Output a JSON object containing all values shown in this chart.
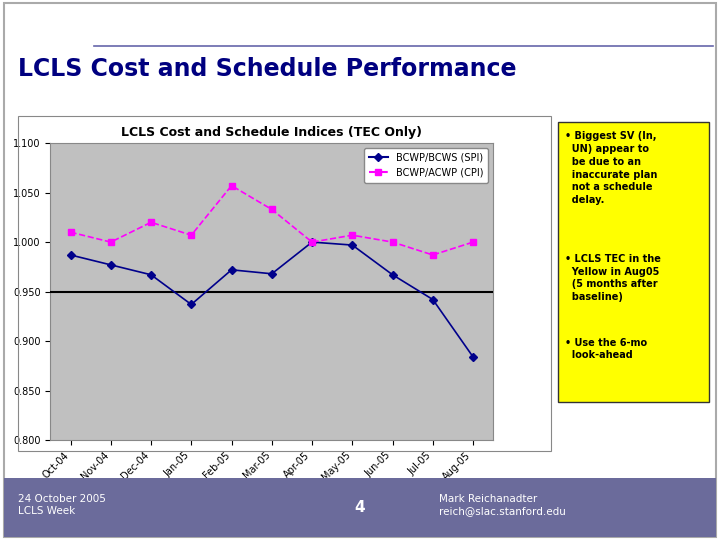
{
  "title": "LCLS Cost and Schedule Performance",
  "chart_title": "LCLS Cost and Schedule Indices (TEC Only)",
  "x_labels": [
    "Oct-04",
    "Nov-04",
    "Dec-04",
    "Jan-05",
    "Feb-05",
    "Mar-05",
    "Apr-05",
    "May-05",
    "Jun-05",
    "Jul-05",
    "Aug-05"
  ],
  "spi_values": [
    0.987,
    0.977,
    0.967,
    0.937,
    0.972,
    0.968,
    1.0,
    0.997,
    0.967,
    0.942,
    0.884
  ],
  "cpi_values": [
    1.01,
    1.0,
    1.02,
    1.007,
    1.057,
    1.033,
    1.0,
    1.007,
    1.0,
    0.987,
    1.0
  ],
  "spi_color": "#00008B",
  "cpi_color": "#FF00FF",
  "plot_bg": "#C0C0C0",
  "ylim": [
    0.8,
    1.1
  ],
  "yticks": [
    0.8,
    0.85,
    0.9,
    0.95,
    1.0,
    1.05,
    1.1
  ],
  "hline_y": 0.95,
  "legend_spi": "BCWP/BCWS (SPI)",
  "legend_cpi": "BCWP/ACWP (CPI)",
  "bullet1_lines": [
    "Biggest SV (In,",
    "UN) appear to",
    "be due to an",
    "inaccurate plan",
    "not a schedule",
    "delay."
  ],
  "bullet2_lines": [
    "LCLS TEC in the",
    "Yellow in Aug05",
    "(5 months after",
    "baseline)"
  ],
  "bullet3_lines": [
    "Use the 6-mo",
    "look-ahead"
  ],
  "main_title_color": "#000080",
  "page_bg": "#FFFFFF",
  "header_bg": "#FFFFFF",
  "footer_bg": "#6B6B9B",
  "footer_left": "24 October 2005\nLCLS Week",
  "footer_center": "4",
  "footer_right": "Mark Reichanadter\nreich@slac.stanford.edu",
  "slide_border_color": "#AAAAAA",
  "chart_border_color": "#888888",
  "yellow_box_color": "#FFFF00",
  "yellow_box_border": "#333333",
  "header_line_color": "#6666AA"
}
